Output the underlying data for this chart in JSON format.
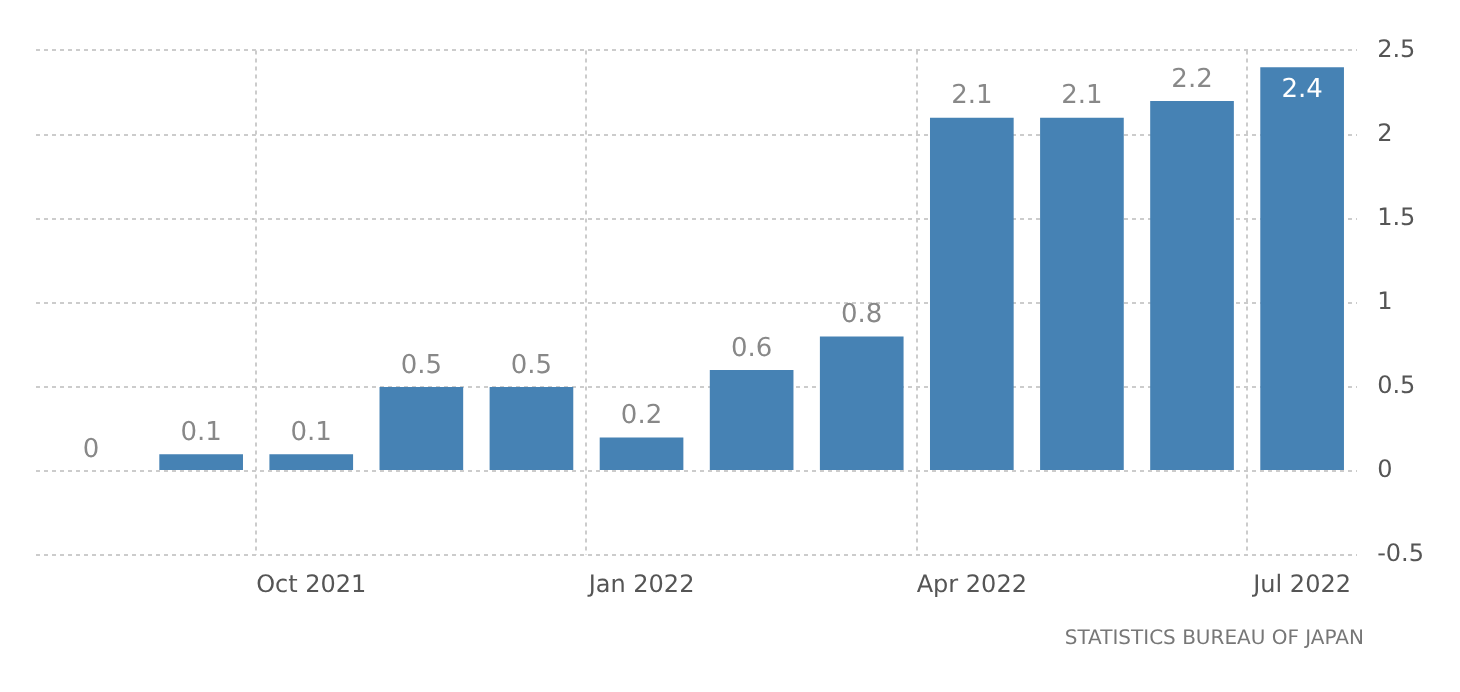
{
  "chart_data": {
    "type": "bar",
    "categories": [
      null,
      null,
      "Oct 2021",
      null,
      null,
      "Jan 2022",
      null,
      null,
      "Apr 2022",
      null,
      null,
      "Jul 2022"
    ],
    "values": [
      0,
      0.1,
      0.1,
      0.5,
      0.5,
      0.2,
      0.6,
      0.8,
      2.1,
      2.1,
      2.2,
      2.4
    ],
    "color": "#4682b4",
    "ylim": [
      -0.5,
      2.5
    ],
    "yticks": [
      -0.5,
      0,
      0.5,
      1,
      1.5,
      2,
      2.5
    ],
    "grid": true,
    "data_labels": true,
    "annotations": [
      "STATISTICS BUREAU OF JAPAN"
    ]
  }
}
